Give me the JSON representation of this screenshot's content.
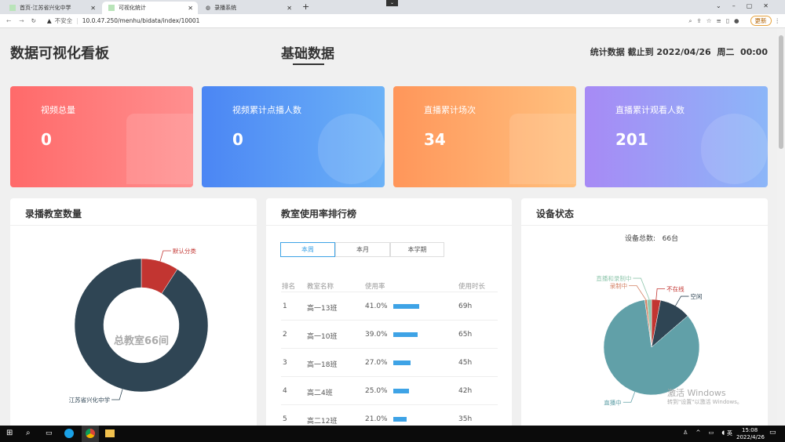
{
  "browser": {
    "tabs": [
      {
        "title": "首页-江苏省兴化中学"
      },
      {
        "title": "可视化统计"
      },
      {
        "title": "录播系统"
      }
    ],
    "insecure_label": "不安全",
    "url": "10.0.47.250/menhu/bidata/index/10001",
    "update_button": "更新"
  },
  "header": {
    "title": "数据可视化看板",
    "center_tab": "基础数据",
    "stat_time": "统计数据 截止到 2022/04/26  周二  00:00"
  },
  "cards": [
    {
      "label": "视频总量",
      "value": "0",
      "color": "#ff6b6b"
    },
    {
      "label": "视频累计点播人数",
      "value": "0",
      "color": "#4d8cf5"
    },
    {
      "label": "直播累计场次",
      "value": "34",
      "color": "#ff9a5c"
    },
    {
      "label": "直播累计观看人数",
      "value": "201",
      "color": "#a48af5"
    }
  ],
  "panels": {
    "classrooms": {
      "title": "录播教室数量",
      "center_label": "总教室66间"
    },
    "ranking": {
      "title": "教室使用率排行榜",
      "segments": [
        "本周",
        "本月",
        "本学期"
      ],
      "active_segment": "本周",
      "columns": [
        "排名",
        "教室名称",
        "使用率",
        "使用时长"
      ],
      "rows": [
        {
          "rank": "1",
          "name": "高一13班",
          "rate": "41.0%",
          "rate_value": 41,
          "hours": "69h"
        },
        {
          "rank": "2",
          "name": "高一10班",
          "rate": "39.0%",
          "rate_value": 39,
          "hours": "65h"
        },
        {
          "rank": "3",
          "name": "高一18班",
          "rate": "27.0%",
          "rate_value": 27,
          "hours": "45h"
        },
        {
          "rank": "4",
          "name": "高二4班",
          "rate": "25.0%",
          "rate_value": 25,
          "hours": "42h"
        },
        {
          "rank": "5",
          "name": "高二12班",
          "rate": "21.0%",
          "rate_value": 21,
          "hours": "35h"
        }
      ]
    },
    "devices": {
      "title": "设备状态",
      "total_label": "设备总数:",
      "total_value": "66台"
    }
  },
  "chart_data": [
    {
      "type": "pie",
      "donut": true,
      "categories": [
        "默认分类",
        "江苏省兴化中学"
      ],
      "values": [
        6,
        60
      ],
      "colors": [
        "#c23531",
        "#2f4554"
      ]
    },
    {
      "type": "pie",
      "categories": [
        "不在线",
        "空闲",
        "直播中",
        "录制中",
        "直播和录制中"
      ],
      "values": [
        2,
        7,
        55.5,
        0.5,
        1
      ],
      "colors": [
        "#c23531",
        "#2f4554",
        "#61a0a8",
        "#d48265",
        "#91c7ae"
      ]
    }
  ],
  "watermark": {
    "line1": "激活 Windows",
    "line2": "转到\"设置\"以激活 Windows。"
  },
  "taskbar": {
    "time": "15:08",
    "date": "2022/4/26",
    "ime": "英"
  }
}
